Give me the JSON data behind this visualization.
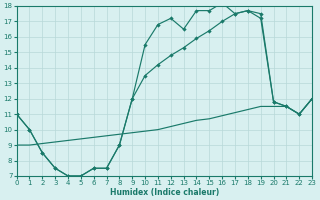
{
  "xlabel": "Humidex (Indice chaleur)",
  "bg_color": "#d8f0f0",
  "line_color": "#1a7a6a",
  "grid_color": "#b8d8d8",
  "xmin": 0,
  "xmax": 23,
  "ymin": 7,
  "ymax": 18,
  "series1_x": [
    0,
    1,
    2,
    3,
    4,
    5,
    6,
    7,
    8,
    9,
    10,
    11,
    12,
    13,
    14,
    15,
    16,
    17,
    18,
    19,
    20,
    21,
    22,
    23
  ],
  "series1_y": [
    11,
    10,
    8.5,
    7.5,
    7.0,
    7.0,
    7.5,
    7.5,
    9.0,
    12.0,
    15.5,
    16.8,
    17.2,
    16.5,
    17.7,
    17.7,
    18.2,
    17.5,
    17.7,
    17.2,
    11.8,
    11.5,
    11.0,
    12.0
  ],
  "series2_x": [
    0,
    1,
    2,
    3,
    4,
    5,
    6,
    7,
    8,
    9,
    10,
    11,
    12,
    13,
    14,
    15,
    16,
    17,
    18,
    19,
    20,
    21,
    22,
    23
  ],
  "series2_y": [
    11.0,
    10.0,
    8.5,
    7.5,
    7.0,
    7.0,
    7.5,
    7.5,
    9.0,
    12.0,
    13.5,
    14.2,
    14.8,
    15.3,
    15.9,
    16.4,
    17.0,
    17.5,
    17.7,
    17.5,
    11.8,
    11.5,
    11.0,
    12.0
  ],
  "series3_x": [
    0,
    1,
    2,
    3,
    4,
    5,
    6,
    7,
    8,
    9,
    10,
    11,
    12,
    13,
    14,
    15,
    16,
    17,
    18,
    19,
    20,
    21,
    22,
    23
  ],
  "series3_y": [
    9.0,
    9.0,
    9.1,
    9.2,
    9.3,
    9.4,
    9.5,
    9.6,
    9.7,
    9.8,
    9.9,
    10.0,
    10.2,
    10.4,
    10.6,
    10.7,
    10.9,
    11.1,
    11.3,
    11.5,
    11.5,
    11.5,
    11.0,
    12.0
  ]
}
